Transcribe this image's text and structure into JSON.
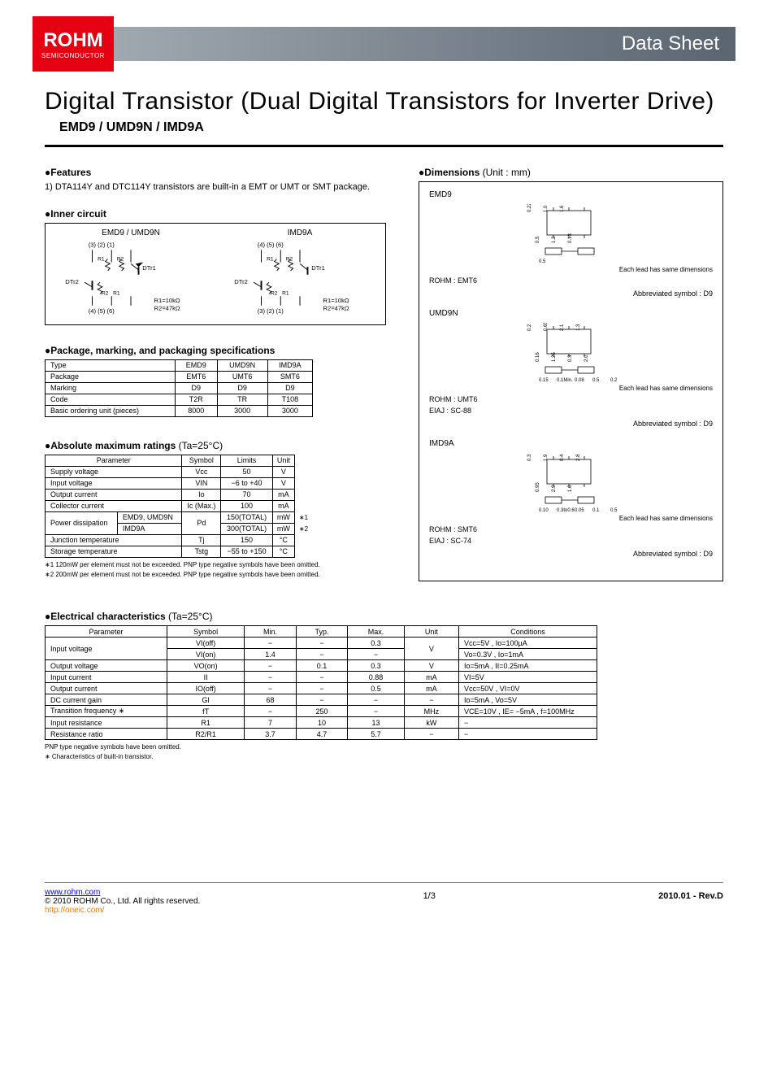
{
  "header": {
    "logo_main": "ROHM",
    "logo_sub": "SEMICONDUCTOR",
    "datasheet_label": "Data Sheet"
  },
  "title": "Digital Transistor (Dual Digital Transistors for Inverter Drive)",
  "subtitle": "EMD9 / UMD9N / IMD9A",
  "features": {
    "heading": "●Features",
    "text": "1) DTA114Y and DTC114Y transistors are built-in a EMT or UMT or SMT package."
  },
  "inner_circuit": {
    "heading": "●Inner circuit",
    "col1_title": "EMD9 / UMD9N",
    "col2_title": "IMD9A",
    "pins_top_1": "(3)  (2)  (1)",
    "pins_bot_1": "(4)  (5)  (6)",
    "pins_top_2": "(4)  (5)  (6)",
    "pins_bot_2": "(3)  (2)  (1)",
    "r_note": "R1=10kΩ\nR2=47kΩ",
    "dtr1": "DTr1",
    "dtr2": "DTr2",
    "r1": "R1",
    "r2": "R2"
  },
  "pkg_spec": {
    "heading": "●Package, marking, and packaging specifications",
    "rows": [
      [
        "Type",
        "EMD9",
        "UMD9N",
        "IMD9A"
      ],
      [
        "Package",
        "EMT6",
        "UMT6",
        "SMT6"
      ],
      [
        "Marking",
        "D9",
        "D9",
        "D9"
      ],
      [
        "Code",
        "T2R",
        "TR",
        "T108"
      ],
      [
        "Basic ordering unit (pieces)",
        "8000",
        "3000",
        "3000"
      ]
    ]
  },
  "abs_max": {
    "heading": "●Absolute maximum ratings",
    "heading_note": " (Ta=25°C)",
    "columns": [
      "Parameter",
      "Symbol",
      "Limits",
      "Unit"
    ],
    "rows": [
      {
        "param": "Supply voltage",
        "sym": "Vcc",
        "lim": "50",
        "unit": "V"
      },
      {
        "param": "Input voltage",
        "sym": "VIN",
        "lim": "−6 to +40",
        "unit": "V"
      },
      {
        "param": "Output current",
        "sym": "Io",
        "lim": "70",
        "unit": "mA"
      },
      {
        "param": "Collector current",
        "sym": "Ic (Max.)",
        "lim": "100",
        "unit": "mA"
      }
    ],
    "pd_row": {
      "param": "Power dissipation",
      "sub1": "EMD9, UMD9N",
      "sub2": "IMD9A",
      "sym": "Pd",
      "lim1": "150(TOTAL)",
      "lim2": "300(TOTAL)",
      "unit": "mW",
      "note1": "∗1",
      "note2": "∗2"
    },
    "tail_rows": [
      {
        "param": "Junction temperature",
        "sym": "Tj",
        "lim": "150",
        "unit": "°C"
      },
      {
        "param": "Storage temperature",
        "sym": "Tstg",
        "lim": "−55 to +150",
        "unit": "°C"
      }
    ],
    "foot1": "∗1  120mW per element must not be exceeded.  PNP type negative symbols have been omitted.",
    "foot2": "∗2  200mW per element must not be exceeded.  PNP type negative symbols have been omitted."
  },
  "dimensions": {
    "heading": "●Dimensions",
    "heading_note": " (Unit : mm)",
    "parts": [
      {
        "name": "EMD9",
        "rohm": "ROHM  :  EMT6",
        "eiaj": "",
        "sym": "Abbreviated symbol : D9",
        "lead_note": "Each lead has same dimensions",
        "top_dims": [
          "0.22",
          "0.5",
          "1.0",
          "1.2",
          "1.6",
          "0.13"
        ],
        "bot_dims": [
          "0.5"
        ]
      },
      {
        "name": "UMD9N",
        "rohm": "ROHM  :  UMT6",
        "eiaj": "EIAJ   :  SC-88",
        "sym": "Abbreviated symbol : D9",
        "lead_note": "Each lead has same dimensions",
        "top_dims": [
          "0.2",
          "0.16",
          "0.65",
          "1.25",
          "2.1",
          "0.3",
          "1.3",
          "2.0"
        ],
        "bot_dims": [
          "0.15",
          "0.1Min.",
          "0.08",
          "0.5",
          "0.2"
        ]
      },
      {
        "name": "IMD9A",
        "rohm": "ROHM  :  SMT6",
        "eiaj": "EIAJ   :  SC-74",
        "sym": "Abbreviated symbol : D9",
        "lead_note": "Each lead has same dimensions",
        "top_dims": [
          "0.3",
          "0.95",
          "1.9",
          "2.9",
          "0.4",
          "1.6",
          "2.8"
        ],
        "bot_dims": [
          "0.10",
          "0.3to0.6",
          "0.05",
          "0.1",
          "0.5"
        ]
      }
    ]
  },
  "elec": {
    "heading": "●Electrical characteristics",
    "heading_note": " (Ta=25°C)",
    "columns": [
      "Parameter",
      "Symbol",
      "Min.",
      "Typ.",
      "Max.",
      "Unit",
      "Conditions"
    ],
    "rows": [
      {
        "param": "Input voltage",
        "sym": "VI(off)",
        "min": "−",
        "typ": "−",
        "max": "0.3",
        "unit": "V",
        "cond": "Vcc=5V , Io=100µA",
        "rowspan_unit": 2
      },
      {
        "param": "",
        "sym": "VI(on)",
        "min": "1.4",
        "typ": "−",
        "max": "−",
        "unit": "",
        "cond": "Vo=0.3V , Io=1mA"
      },
      {
        "param": "Output voltage",
        "sym": "VO(on)",
        "min": "−",
        "typ": "0.1",
        "max": "0.3",
        "unit": "V",
        "cond": "Io=5mA , II=0.25mA"
      },
      {
        "param": "Input current",
        "sym": "II",
        "min": "−",
        "typ": "−",
        "max": "0.88",
        "unit": "mA",
        "cond": "VI=5V"
      },
      {
        "param": "Output current",
        "sym": "IO(off)",
        "min": "−",
        "typ": "−",
        "max": "0.5",
        "unit": "mA",
        "cond": "Vcc=50V , VI=0V"
      },
      {
        "param": "DC current gain",
        "sym": "GI",
        "min": "68",
        "typ": "−",
        "max": "−",
        "unit": "−",
        "cond": "Io=5mA , Vo=5V"
      },
      {
        "param": "Transition frequency ∗",
        "sym": "fT",
        "min": "−",
        "typ": "250",
        "max": "−",
        "unit": "MHz",
        "cond": "VCE=10V , IE= −5mA , f=100MHz"
      },
      {
        "param": "Input resistance",
        "sym": "R1",
        "min": "7",
        "typ": "10",
        "max": "13",
        "unit": "kW",
        "cond": "−"
      },
      {
        "param": "Resistance ratio",
        "sym": "R2/R1",
        "min": "3.7",
        "typ": "4.7",
        "max": "5.7",
        "unit": "−",
        "cond": "−"
      }
    ],
    "foot1": "PNP type negative symbols have been omitted.",
    "foot2": "∗ Characteristics of built-in transistor."
  },
  "footer": {
    "url": "www.rohm.com",
    "copyright": "© 2010 ROHM Co., Ltd. All rights reserved.",
    "link2": "http://oneic.com/",
    "page": "1/3",
    "rev": "2010.01 - Rev.D"
  }
}
